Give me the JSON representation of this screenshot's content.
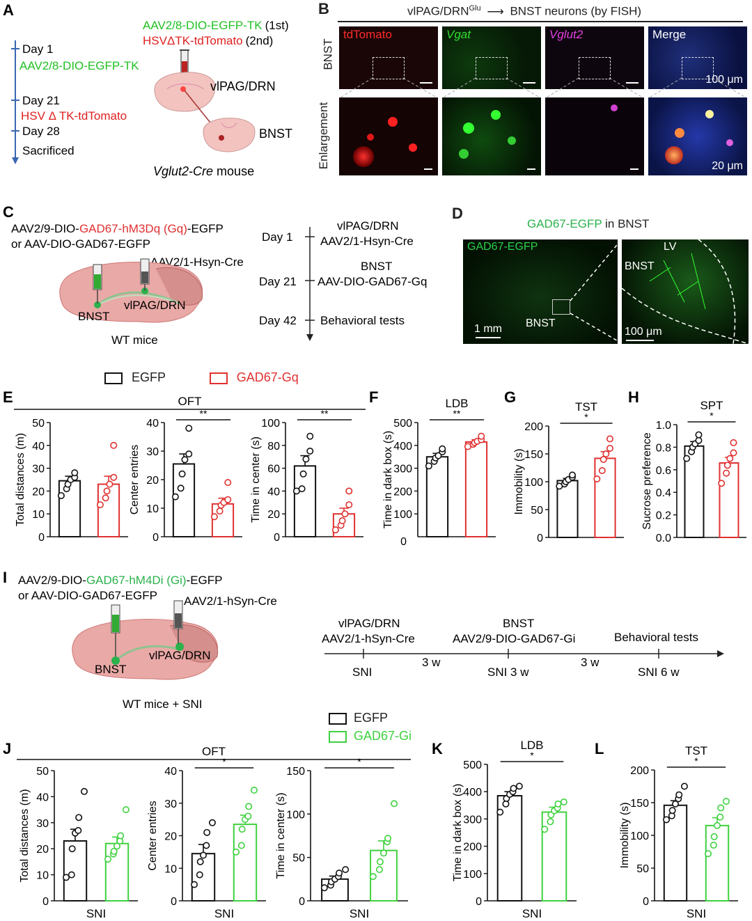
{
  "panels": {
    "A": {
      "letter": "A",
      "virus1": "AAV2/8-DIO-EGFP-TK",
      "virus1_order": "(1st)",
      "virus2": "HSVΔTK-tdTomato",
      "virus2_order": "(2nd)",
      "region1": "vlPAG/DRN",
      "region2": "BNST",
      "mouse_italic": "Vglut2-Cre",
      "mouse_rest": " mouse",
      "timeline": [
        {
          "day": "Day 1",
          "event": "AAV2/8-DIO-EGFP-TK",
          "color": "#22c022"
        },
        {
          "day": "Day 21",
          "event": "HSV Δ TK-tdTomato",
          "color": "#e02020"
        },
        {
          "day": "Day 28",
          "event": "Sacrificed",
          "color": "#222222"
        }
      ]
    },
    "B": {
      "letter": "B",
      "title_pre": "vlPAG/DRN",
      "title_sup": "Glu",
      "title_post": "BNST neurons (by FISH)",
      "row_labels": [
        "BNST",
        "Enlargement"
      ],
      "channels": [
        {
          "label": "tdTomato",
          "color": "#ff2a2a"
        },
        {
          "label": "Vgat",
          "color": "#33dd33"
        },
        {
          "label": "Vglut2",
          "color": "#e040e0"
        },
        {
          "label": "Merge",
          "color": "#ffffff"
        }
      ],
      "scale_top": "100 μm",
      "scale_bottom": "20 μm"
    },
    "C": {
      "letter": "C",
      "virus_pre": "AAV2/9-DIO-",
      "virus_red": "GAD67-hM3Dq (Gq)",
      "virus_post": "-EGFP",
      "virus_alt": "or AAV-DIO-GAD67-EGFP",
      "virus_cre": "AAV2/1-Hsyn-Cre",
      "region_bnst": "BNST",
      "region_pag": "vlPAG/DRN",
      "caption": "WT mice",
      "timeline": [
        {
          "day": "Day 1",
          "line1": "vlPAG/DRN",
          "line2": "AAV2/1-Hsyn-Cre"
        },
        {
          "day": "Day 21",
          "line1": "BNST",
          "line2": "AAV-DIO-GAD67-Gq"
        },
        {
          "day": "Day 42",
          "line1": "",
          "line2": "Behavioral tests"
        }
      ]
    },
    "D": {
      "letter": "D",
      "title_green": "GAD67-EGFP",
      "title_rest": " in BNST",
      "img_label": "GAD67-EGFP",
      "bnst": "BNST",
      "bnst2": "BNST",
      "lv": "LV",
      "scale1": "1 mm",
      "scale2": "100 μm"
    },
    "I": {
      "letter": "I",
      "virus_pre": "AAV2/9-DIO-",
      "virus_green": "GAD67-hM4Di (Gi)",
      "virus_post": "-EGFP",
      "virus_alt": "or AAV-DIO-GAD67-EGFP",
      "virus_cre": "AAV2/1-hSyn-Cre",
      "region_bnst": "BNST",
      "region_pag": "vlPAG/DRN",
      "caption": "WT mice + SNI",
      "timeline": {
        "top": [
          "vlPAG/DRN",
          "BNST",
          "Behavioral tests"
        ],
        "top2": [
          "AAV2/1-hSyn-Cre",
          "AAV2/9-DIO-GAD67-Gi"
        ],
        "bottom": [
          "SNI",
          "SNI 3 w",
          "SNI 6 w"
        ],
        "gaps": [
          "3 w",
          "3 w"
        ]
      }
    }
  },
  "legend_gq": {
    "ctrl": "EGFP",
    "treat": "GAD67-Gq"
  },
  "legend_gi": {
    "ctrl": "EGFP",
    "treat": "GAD67-Gi"
  },
  "colors": {
    "ctrl": "#111111",
    "gq": "#e03030",
    "gi": "#3ed13e"
  },
  "chart_data": [
    {
      "id": "E1",
      "letter": "E",
      "group_title": "OFT",
      "type": "bar",
      "test": "",
      "ylabel": "Total distances (m)",
      "ylim": [
        0,
        50
      ],
      "yticks": [
        0,
        10,
        20,
        30,
        40,
        50
      ],
      "treat": "gq",
      "sig": "",
      "xlabel": "",
      "series": [
        {
          "name": "EGFP",
          "mean": 24.5,
          "sem": 2,
          "points": [
            18,
            21,
            23,
            25,
            26,
            28
          ]
        },
        {
          "name": "GAD67-Gq",
          "mean": 23,
          "sem": 3.5,
          "points": [
            14,
            17,
            20,
            23,
            26,
            40
          ]
        }
      ]
    },
    {
      "id": "E2",
      "letter": "",
      "group_title": "",
      "type": "bar",
      "test": "",
      "ylabel": "Center entries",
      "ylim": [
        0,
        40
      ],
      "yticks": [
        0,
        10,
        20,
        30,
        40
      ],
      "treat": "gq",
      "sig": "**",
      "xlabel": "",
      "series": [
        {
          "name": "EGFP",
          "mean": 25.5,
          "sem": 3.5,
          "points": [
            14,
            17,
            22,
            27,
            29,
            38
          ]
        },
        {
          "name": "GAD67-Gq",
          "mean": 11.5,
          "sem": 2,
          "points": [
            7,
            9,
            11,
            12,
            13,
            19
          ]
        }
      ]
    },
    {
      "id": "E3",
      "letter": "",
      "group_title": "",
      "type": "bar",
      "test": "",
      "ylabel": "Time in center (s)",
      "ylim": [
        0,
        100
      ],
      "yticks": [
        0,
        20,
        40,
        60,
        80,
        100
      ],
      "treat": "gq",
      "sig": "**",
      "xlabel": "",
      "series": [
        {
          "name": "EGFP",
          "mean": 62,
          "sem": 9,
          "points": [
            40,
            42,
            55,
            68,
            75,
            88
          ]
        },
        {
          "name": "GAD67-Gq",
          "mean": 20,
          "sem": 5,
          "points": [
            6,
            10,
            14,
            20,
            28,
            40
          ]
        }
      ]
    },
    {
      "id": "F",
      "letter": "F",
      "group_title": "",
      "type": "bar",
      "test": "LDB",
      "ylabel": "Time in dark box (s)",
      "ylim": [
        0,
        500
      ],
      "yticks": [
        100,
        200,
        300,
        400,
        500
      ],
      "zero_label": "0",
      "treat": "gq",
      "sig": "**",
      "xlabel": "",
      "series": [
        {
          "name": "EGFP",
          "mean": 350,
          "sem": 15,
          "points": [
            310,
            330,
            345,
            355,
            372,
            385
          ]
        },
        {
          "name": "GAD67-Gq",
          "mean": 415,
          "sem": 10,
          "points": [
            395,
            405,
            412,
            418,
            425,
            440
          ]
        }
      ]
    },
    {
      "id": "G",
      "letter": "G",
      "group_title": "",
      "type": "bar",
      "test": "TST",
      "ylabel": "Immobility (s)",
      "ylim": [
        0,
        200
      ],
      "yticks": [
        0,
        50,
        100,
        150,
        200
      ],
      "treat": "gq",
      "sig": "*",
      "xlabel": "",
      "series": [
        {
          "name": "EGFP",
          "mean": 102,
          "sem": 4,
          "points": [
            92,
            96,
            100,
            104,
            108,
            112
          ]
        },
        {
          "name": "GAD67-Gq",
          "mean": 142,
          "sem": 12,
          "points": [
            105,
            120,
            140,
            150,
            160,
            177
          ]
        }
      ]
    },
    {
      "id": "H",
      "letter": "H",
      "group_title": "",
      "type": "bar",
      "test": "SPT",
      "ylabel": "Sucrose preference",
      "ylim": [
        0,
        1.0
      ],
      "yticks": [
        0.0,
        0.2,
        0.4,
        0.6,
        0.8,
        1.0
      ],
      "tick_decimals": 1,
      "treat": "gq",
      "sig": "*",
      "xlabel": "",
      "series": [
        {
          "name": "EGFP",
          "mean": 0.81,
          "sem": 0.04,
          "points": [
            0.7,
            0.76,
            0.8,
            0.83,
            0.86,
            0.91
          ]
        },
        {
          "name": "GAD67-Gq",
          "mean": 0.66,
          "sem": 0.05,
          "points": [
            0.48,
            0.57,
            0.64,
            0.7,
            0.75,
            0.84
          ]
        }
      ]
    },
    {
      "id": "J1",
      "letter": "J",
      "group_title": "OFT",
      "type": "bar",
      "test": "",
      "ylabel": "Total distances (m)",
      "ylim": [
        0,
        50
      ],
      "yticks": [
        0,
        10,
        20,
        30,
        40,
        50
      ],
      "treat": "gi",
      "sig": "",
      "xlabel": "SNI",
      "series": [
        {
          "name": "EGFP",
          "mean": 23,
          "sem": 4.5,
          "points": [
            9,
            10,
            20,
            26,
            27,
            32,
            42
          ]
        },
        {
          "name": "GAD67-Gi",
          "mean": 22,
          "sem": 2.5,
          "points": [
            16,
            18,
            19,
            21,
            23,
            25,
            35
          ]
        }
      ]
    },
    {
      "id": "J2",
      "letter": "",
      "group_title": "",
      "type": "bar",
      "test": "",
      "ylabel": "Center entries",
      "ylim": [
        0,
        40
      ],
      "yticks": [
        0,
        10,
        20,
        30,
        40
      ],
      "treat": "gi",
      "sig": "*",
      "xlabel": "SNI",
      "series": [
        {
          "name": "EGFP",
          "mean": 14.5,
          "sem": 2.8,
          "points": [
            5,
            8,
            12,
            14,
            17,
            21,
            24
          ]
        },
        {
          "name": "GAD67-Gi",
          "mean": 23.5,
          "sem": 2.8,
          "points": [
            15,
            17,
            22,
            25,
            26,
            29,
            34
          ]
        }
      ]
    },
    {
      "id": "J3",
      "letter": "",
      "group_title": "",
      "type": "bar",
      "test": "",
      "ylabel": "Time in center (s)",
      "ylim": [
        0,
        150
      ],
      "yticks": [
        0,
        50,
        100,
        150
      ],
      "treat": "gi",
      "sig": "*",
      "xlabel": "SNI",
      "series": [
        {
          "name": "EGFP",
          "mean": 25,
          "sem": 3.5,
          "points": [
            15,
            18,
            22,
            25,
            28,
            32,
            36
          ]
        },
        {
          "name": "GAD67-Gi",
          "mean": 58,
          "sem": 11,
          "points": [
            28,
            36,
            45,
            55,
            68,
            72,
            112
          ]
        }
      ]
    },
    {
      "id": "K",
      "letter": "K",
      "group_title": "",
      "type": "bar",
      "test": "LDB",
      "ylabel": "Time in dark box (s)",
      "ylim": [
        0,
        500
      ],
      "yticks": [
        0,
        100,
        200,
        300,
        400,
        500
      ],
      "treat": "gi",
      "sig": "*",
      "xlabel": "SNI",
      "series": [
        {
          "name": "EGFP",
          "mean": 385,
          "sem": 15,
          "points": [
            325,
            355,
            375,
            390,
            400,
            412,
            420
          ]
        },
        {
          "name": "GAD67-Gi",
          "mean": 325,
          "sem": 18,
          "points": [
            262,
            290,
            315,
            330,
            340,
            355,
            362
          ]
        }
      ]
    },
    {
      "id": "L",
      "letter": "L",
      "group_title": "",
      "type": "bar",
      "test": "TST",
      "ylabel": "Immobility (s)",
      "ylim": [
        0,
        200
      ],
      "yticks": [
        0,
        50,
        100,
        150,
        200
      ],
      "treat": "gi",
      "sig": "*",
      "xlabel": "SNI",
      "series": [
        {
          "name": "EGFP",
          "mean": 146,
          "sem": 7,
          "points": [
            124,
            130,
            138,
            148,
            156,
            162,
            175
          ]
        },
        {
          "name": "GAD67-Gi",
          "mean": 115,
          "sem": 12,
          "points": [
            72,
            85,
            98,
            115,
            128,
            142,
            152
          ]
        }
      ]
    }
  ]
}
